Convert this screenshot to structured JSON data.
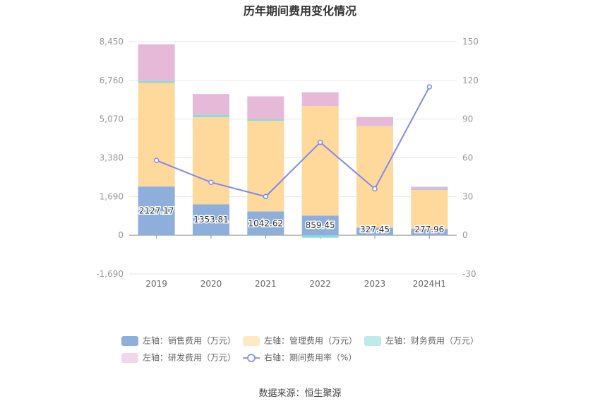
{
  "chart_data": {
    "type": "bar",
    "title": "历年期间费用变化情况",
    "categories": [
      "2019",
      "2020",
      "2021",
      "2022",
      "2023",
      "2024H1"
    ],
    "series": [
      {
        "name": "左轴：销售费用（万元）",
        "axis": "left",
        "kind": "bar",
        "color": "#8eaedc",
        "values": [
          2127.17,
          1353.81,
          1042.62,
          859.45,
          327.45,
          277.96
        ],
        "labels": [
          "2127.17",
          "1353.81",
          "1042.62",
          "859.45",
          "327.45",
          "277.96"
        ]
      },
      {
        "name": "左轴：管理费用（万元）",
        "axis": "left",
        "kind": "bar",
        "color": "#ffd99b",
        "values": [
          4520,
          3800,
          3950,
          4780,
          4440,
          1700
        ]
      },
      {
        "name": "左轴：财务费用（万元）",
        "axis": "left",
        "kind": "bar",
        "color": "#8fd9da",
        "values": [
          90,
          110,
          70,
          -110,
          20,
          30
        ]
      },
      {
        "name": "左轴：研发费用（万元）",
        "axis": "left",
        "kind": "bar",
        "color": "#e6b9d9",
        "values": [
          1600,
          900,
          1000,
          600,
          370,
          110
        ]
      },
      {
        "name": "右轴：期间费用率（%）",
        "axis": "right",
        "kind": "line",
        "color": "#7f89ef",
        "values": [
          58,
          41,
          30,
          72,
          36,
          115
        ]
      }
    ],
    "left_axis": {
      "ticks": [
        "8,450",
        "6,760",
        "5,070",
        "3,380",
        "1,690",
        "0",
        "-1,690"
      ],
      "min": -1690,
      "max": 8450
    },
    "right_axis": {
      "ticks": [
        "150",
        "120",
        "90",
        "60",
        "30",
        "0",
        "-30"
      ],
      "min": -30,
      "max": 150
    },
    "grid": true,
    "legend_position": "bottom"
  },
  "source": "数据来源：恒生聚源"
}
